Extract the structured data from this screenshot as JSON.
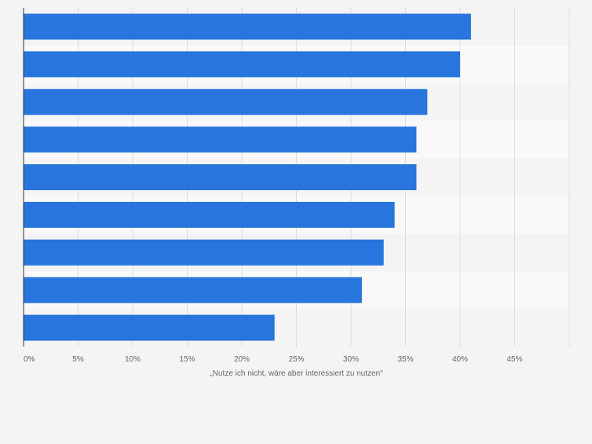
{
  "chart_data": {
    "type": "bar",
    "orientation": "horizontal",
    "categories": [
      "",
      "",
      "",
      "",
      "",
      "",
      "",
      "",
      ""
    ],
    "values": [
      41,
      40,
      37,
      36,
      36,
      34,
      33,
      31,
      23
    ],
    "xlim": [
      0,
      50
    ],
    "ticks": [
      0,
      5,
      10,
      15,
      20,
      25,
      30,
      35,
      40,
      45
    ],
    "tick_labels": [
      "0%",
      "5%",
      "10%",
      "15%",
      "20%",
      "25%",
      "30%",
      "35%",
      "40%",
      "45%"
    ],
    "xlabel": "„Nutze ich nicht, wäre aber interessiert zu nutzen“",
    "grid": true,
    "colors": {
      "bar": "#2876dd",
      "band_dark": "#f4f4f4",
      "band_light": "#f9f9f9",
      "grid": "#dedede",
      "axis": "#333333",
      "tick_text": "#666666"
    }
  }
}
